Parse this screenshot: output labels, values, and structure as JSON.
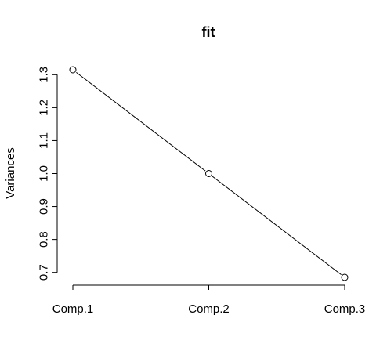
{
  "chart_data": {
    "type": "line",
    "title": "fit",
    "xlabel": "",
    "ylabel": "Variances",
    "categories": [
      "Comp.1",
      "Comp.2",
      "Comp.3"
    ],
    "values": [
      1.315,
      1.0,
      0.685
    ],
    "ylim": [
      0.685,
      1.315
    ],
    "yticks": [
      0.7,
      0.8,
      0.9,
      1.0,
      1.1,
      1.2,
      1.3
    ],
    "ytick_labels": [
      "0.7",
      "0.8",
      "0.9",
      "1.0",
      "1.1",
      "1.2",
      "1.3"
    ],
    "markers": "open-circle",
    "grid": false,
    "legend": "none"
  }
}
